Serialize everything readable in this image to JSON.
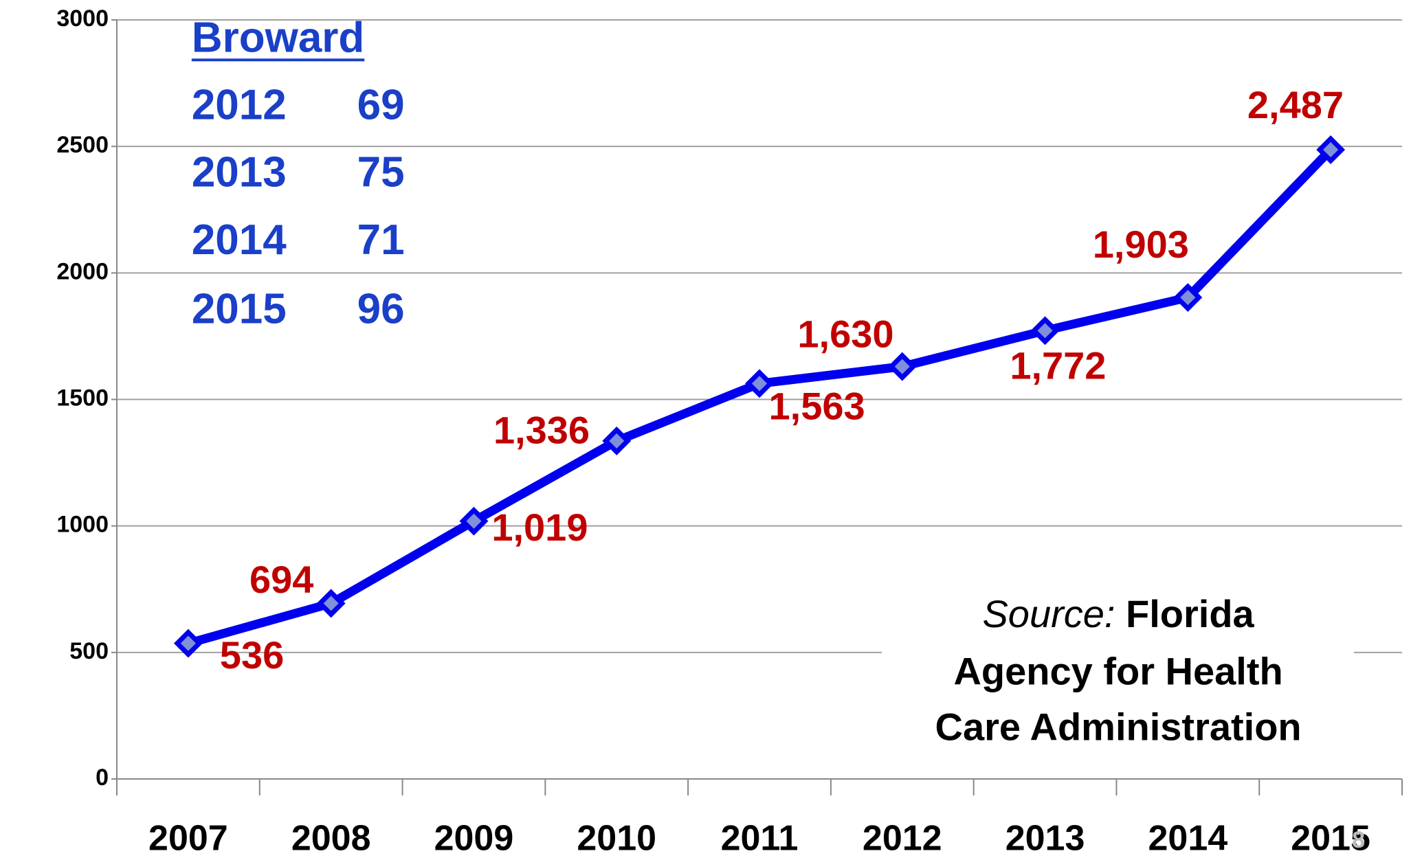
{
  "chart_data": {
    "type": "line",
    "categories": [
      "2007",
      "2008",
      "2009",
      "2010",
      "2011",
      "2012",
      "2013",
      "2014",
      "2015"
    ],
    "series": [
      {
        "name": "Florida",
        "color": "#0000ee",
        "values": [
          536,
          694,
          1019,
          1336,
          1563,
          1630,
          1772,
          1903,
          2487
        ],
        "value_labels": [
          "536",
          "694",
          "1,019",
          "1,336",
          "1,563",
          "1,630",
          "1,772",
          "1,903",
          "2,487"
        ]
      }
    ],
    "ylim": [
      0,
      3000
    ],
    "yticks": [
      0,
      500,
      1000,
      1500,
      2000,
      2500,
      3000
    ],
    "grid": true,
    "label_color": "#c00000",
    "inset": {
      "title": "Broward",
      "rows": [
        [
          "2012",
          "69"
        ],
        [
          "2013",
          "75"
        ],
        [
          "2014",
          "71"
        ],
        [
          "2015",
          "96"
        ]
      ],
      "color": "#1a3fc8"
    },
    "source": {
      "label": "Source:",
      "lines": [
        "Florida",
        "Agency for Health",
        "Care Administration"
      ]
    },
    "page_number": "8"
  }
}
